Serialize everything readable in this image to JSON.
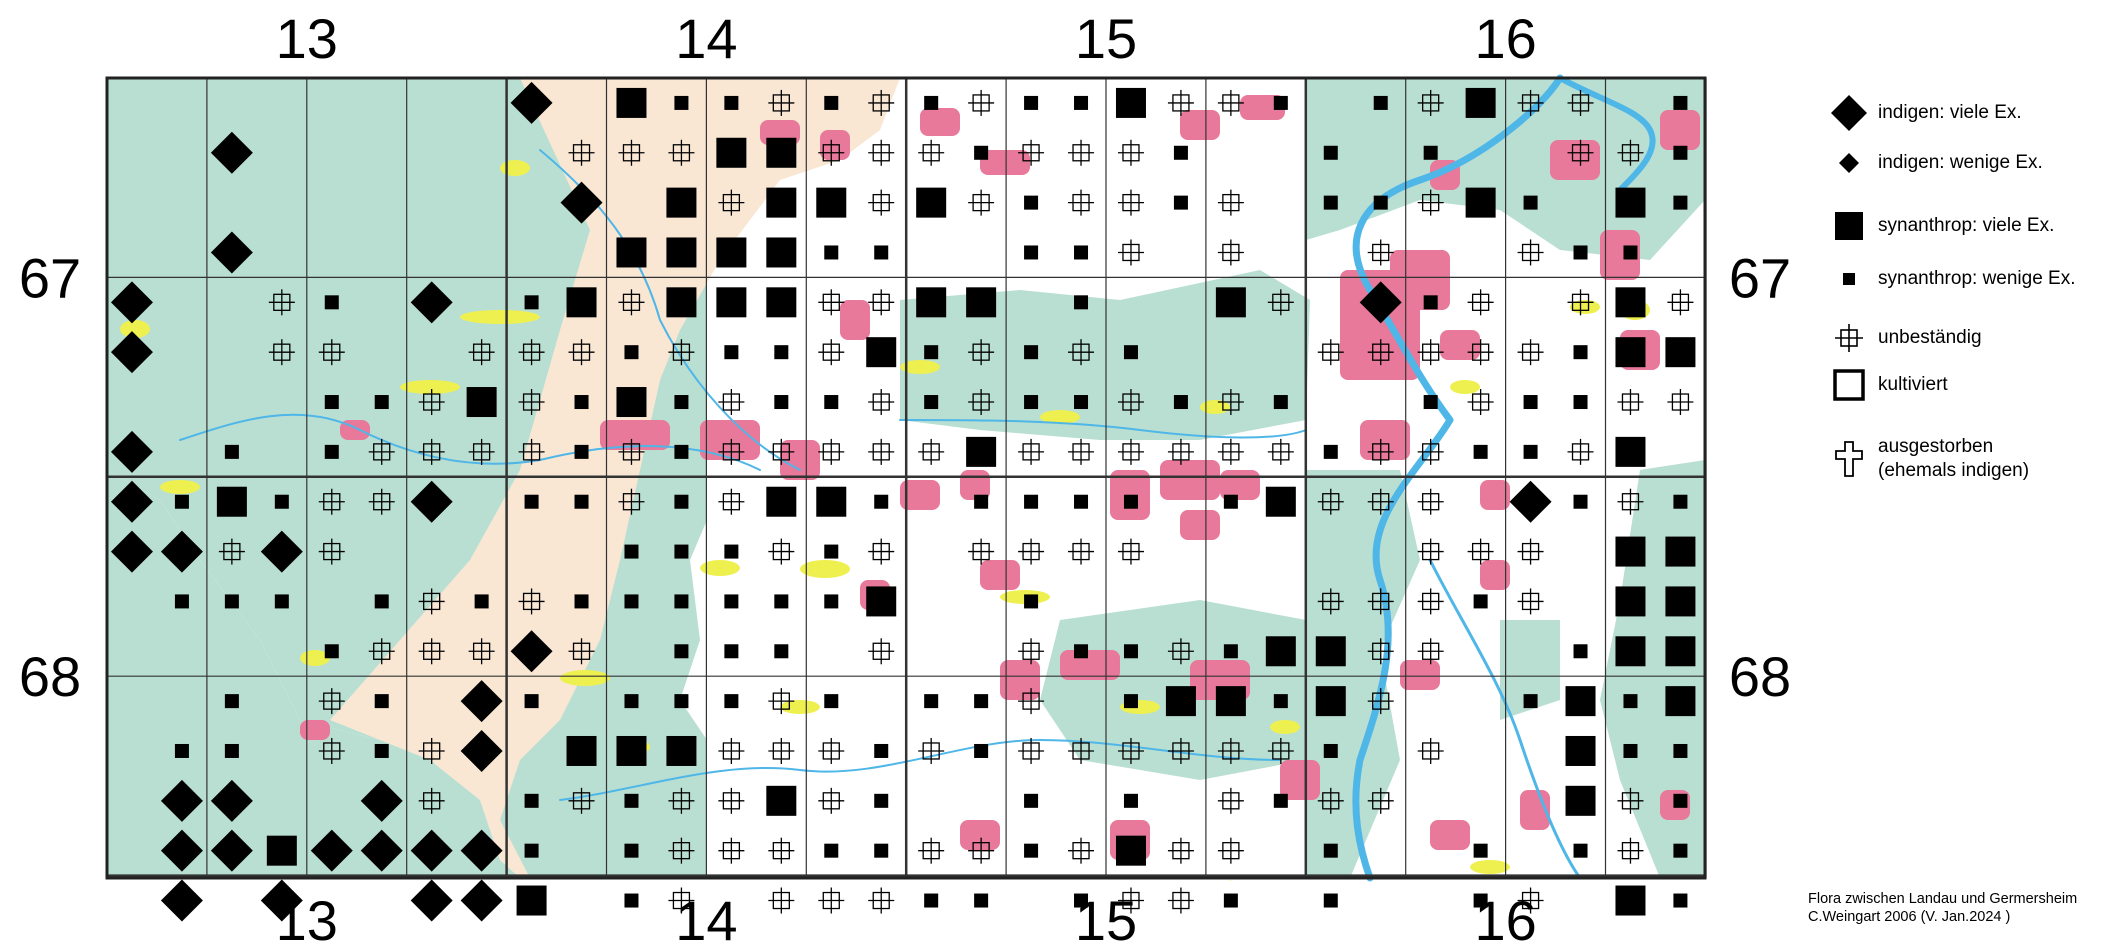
{
  "map": {
    "columns": [
      {
        "label": "13"
      },
      {
        "label": "14"
      },
      {
        "label": "15"
      },
      {
        "label": "16"
      }
    ],
    "rows": [
      {
        "label": "67"
      },
      {
        "label": "68"
      }
    ],
    "colors": {
      "forest": "#b9dfd3",
      "urban": "#e8799a",
      "field": "#f9e7d4",
      "grassland": "#eef04f",
      "water": "#4fb6e8",
      "open": "#ffffff",
      "grid": "#333333"
    },
    "symbol_grid": [
      "........H.Sss+s+s+ssS++s.s+S++.s",
      "..D......+++SS+++s+++s..s.s..++s",
      ".........D.S+SS+S+s++s+.ss+Ss.Ss",
      "..D.......SSSSss..ssh.+..+..+ss.",
      "D..+s.D.sS+SSS++SS.s..Sh.Hs+.+S+",
      "D..++..+++s+ss+Ssrs+s...+++++sSS",
      "....ss+S+sSs+ss+s+ss+s+s..s+ssh+",
      "D.s.s++++s+s+++++S++++++s++ss+S.",
      "DsSs++D.ss+s+SSs.ssss.sS+++.Hs+s",
      "DD+D+.....sss+s+.++++.....+++.SS",
      ".sss.s+s+ssssssS..s.....+++s+.SS",
      "....s+++D+.sss.+..+ss+sSS++..sSS",
      "..s.+s.Ds.sss+s.ss+.sSSsS+..sSsS",
      ".ss.+s+D.SSS+++s+s++++++s.+..Sss",
      ".DD..D+.s+s++S+s..s.s.+s++...S+s",
      ".DDSDDDDs.s+++ss++s+S++.s..s.s+s",
      ".D.D..DDS.s+.+++ss.s++s.s..s+.Ss"
    ]
  },
  "legend": {
    "items": [
      {
        "symbol": "indigen-viele",
        "label": "indigen: viele Ex."
      },
      {
        "symbol": "indigen-wenige",
        "label": "indigen: wenige Ex."
      },
      {
        "symbol": "synanthrop-viele",
        "label": "synanthrop: viele Ex."
      },
      {
        "symbol": "synanthrop-wenige",
        "label": "synanthrop: wenige Ex."
      },
      {
        "symbol": "unbestaendig",
        "label": "unbeständig"
      },
      {
        "symbol": "kultiviert",
        "label": "kultiviert"
      },
      {
        "symbol": "ausgestorben",
        "label": "ausgestorben\n(ehemals indigen)"
      }
    ]
  },
  "credit": {
    "line1": "Flora zwischen Landau und Germersheim",
    "line2": "C.Weingart 2006 (V. Jan.2024 )"
  }
}
